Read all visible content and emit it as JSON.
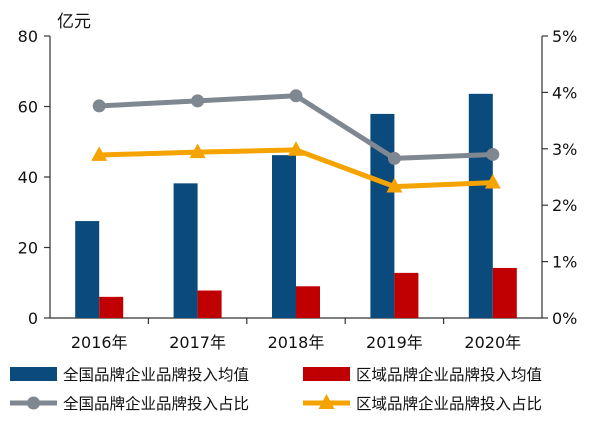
{
  "chart_data": {
    "type": "bar",
    "title": "",
    "y_unit_label": "亿元",
    "categories": [
      "2016年",
      "2017年",
      "2018年",
      "2019年",
      "2020年"
    ],
    "ylim": [
      0,
      80
    ],
    "yticks": [
      "0",
      "20",
      "40",
      "60",
      "80"
    ],
    "y2lim": [
      0,
      5
    ],
    "y2ticks": [
      "0%",
      "1%",
      "2%",
      "3%",
      "4%",
      "5%"
    ],
    "series": [
      {
        "name": "全国品牌企业品牌投入均值",
        "kind": "bar",
        "axis": "left",
        "color": "#0b4a7c",
        "values": [
          27.5,
          38.2,
          46.2,
          57.9,
          63.6
        ]
      },
      {
        "name": "区域品牌企业品牌投入均值",
        "kind": "bar",
        "axis": "left",
        "color": "#c00000",
        "values": [
          6.0,
          7.8,
          9.0,
          12.8,
          14.2
        ]
      },
      {
        "name": "全国品牌企业品牌投入占比",
        "kind": "line",
        "axis": "right",
        "color": "#7f8791",
        "marker": "circle",
        "values": [
          3.76,
          3.85,
          3.94,
          2.83,
          2.9
        ]
      },
      {
        "name": "区域品牌企业品牌投入占比",
        "kind": "line",
        "axis": "right",
        "color": "#f5a300",
        "marker": "triangle",
        "values": [
          2.89,
          2.94,
          2.98,
          2.33,
          2.4
        ]
      }
    ],
    "legend_position": "bottom"
  }
}
